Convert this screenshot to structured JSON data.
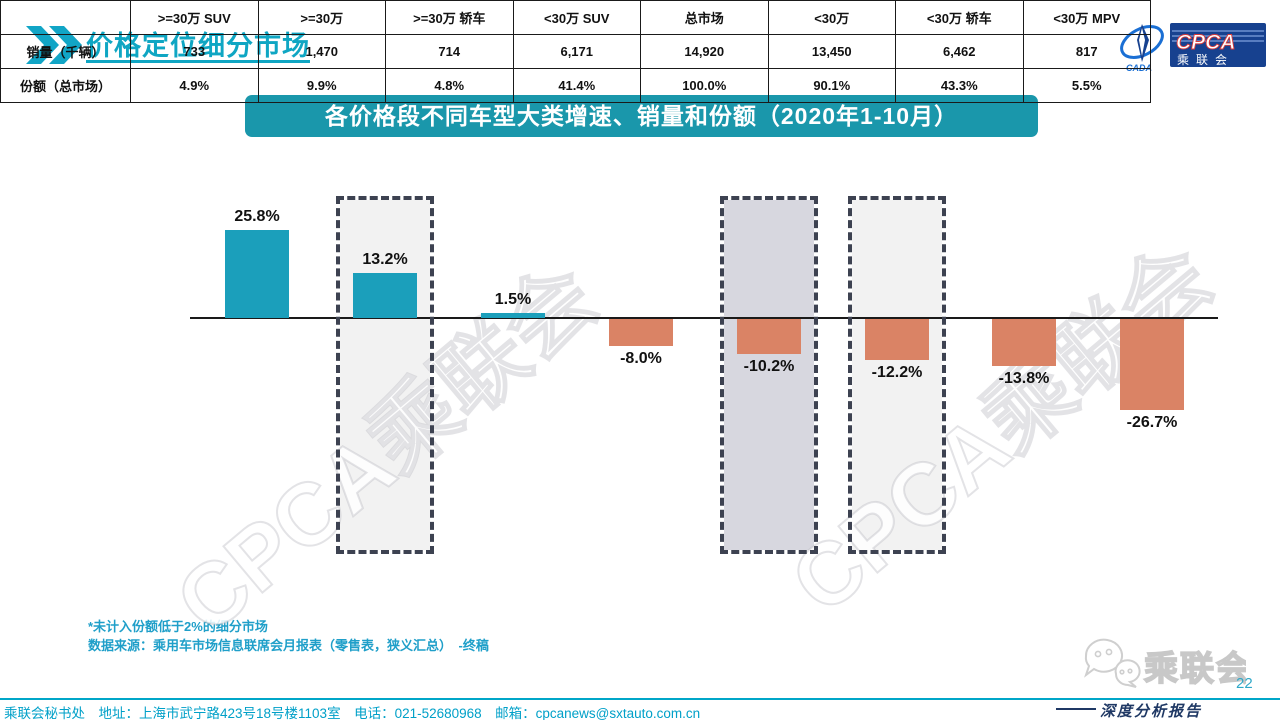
{
  "header": {
    "title": "价格定位细分市场"
  },
  "logo": {
    "cpca_text": "CPCA",
    "cpca_sub": "乘联会",
    "cada_text": "CADA"
  },
  "banner": {
    "title": "各价格段不同车型大类增速、销量和份额（2020年1-10月）"
  },
  "chart_data": {
    "type": "bar",
    "title": "各价格段不同车型大类增速、销量和份额（2020年1-10月）",
    "categories": [
      ">=30万 SUV",
      ">=30万",
      ">=30万 轿车",
      "<30万 SUV",
      "总市场",
      "<30万",
      "<30万 轿车",
      "<30万 MPV"
    ],
    "values": [
      25.8,
      13.2,
      1.5,
      -8.0,
      -10.2,
      -12.2,
      -13.8,
      -26.7
    ],
    "value_labels": [
      "25.8%",
      "13.2%",
      "1.5%",
      "-8.0%",
      "-10.2%",
      "-12.2%",
      "-13.8%",
      "-26.7%"
    ],
    "unit": "%",
    "ylim": [
      -30,
      30
    ],
    "axis": {
      "y_axis_visible": false,
      "gridlines": false,
      "zero_line": true
    },
    "positive_color": "#1B9FBB",
    "negative_color": "#DA8365",
    "highlight_boxes": [
      {
        "category_index": 1,
        "fill": "#F2F2F2"
      },
      {
        "category_index": 4,
        "fill": "#D7D7DF"
      },
      {
        "category_index": 5,
        "fill": "#F2F2F2"
      }
    ],
    "dash_border_color": "#3D4251"
  },
  "table": {
    "corner_label": "",
    "columns": [
      ">=30万 SUV",
      ">=30万",
      ">=30万 轿车",
      "<30万 SUV",
      "总市场",
      "<30万",
      "<30万 轿车",
      "<30万 MPV"
    ],
    "rows": [
      {
        "label": "销量（千辆）",
        "values": [
          "733",
          "1,470",
          "714",
          "6,171",
          "14,920",
          "13,450",
          "6,462",
          "817"
        ]
      },
      {
        "label": "份额（总市场）",
        "values": [
          "4.9%",
          "9.9%",
          "4.8%",
          "41.4%",
          "100.0%",
          "90.1%",
          "43.3%",
          "5.5%"
        ]
      }
    ]
  },
  "watermark": {
    "text": "CPCA乘联会"
  },
  "notes": {
    "line1": "*未计入份额低于2%的细分市场",
    "line2": "数据来源：乘用车市场信息联席会月报表（零售表，狭义汇总）　-终稿"
  },
  "footer": {
    "contact": "乘联会秘书处　地址：上海市武宁路423号18号楼1103室　电话：021-52680968　邮箱：cpcanews@sxtauto.com.cn",
    "page_number": "22",
    "report_label": "深度分析报告",
    "wechat_logo_text": "乘联会"
  }
}
